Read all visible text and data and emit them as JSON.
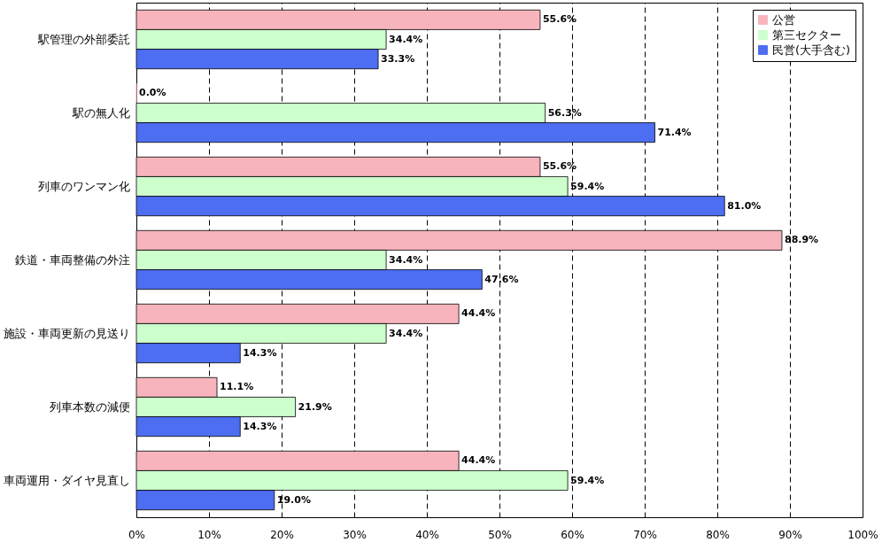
{
  "chart_data": {
    "type": "bar",
    "orientation": "horizontal",
    "categories": [
      "駅管理の外部委託",
      "駅の無人化",
      "列車のワンマン化",
      "鉄道・車両整備の外注",
      "施設・車両更新の見送り",
      "列車本数の減便",
      "車両運用・ダイヤ見直し"
    ],
    "series": [
      {
        "name": "公営",
        "color": "#f7b4bc",
        "values": [
          55.6,
          0.0,
          55.6,
          88.9,
          44.4,
          11.1,
          44.4
        ],
        "value_labels": [
          "55.6%",
          "0.0%",
          "55.6%",
          "88.9%",
          "44.4%",
          "11.1%",
          "44.4%"
        ]
      },
      {
        "name": "第三セクター",
        "color": "#ccffcc",
        "values": [
          34.4,
          56.3,
          59.4,
          34.4,
          34.4,
          21.9,
          59.4
        ],
        "value_labels": [
          "34.4%",
          "56.3%",
          "59.4%",
          "34.4%",
          "34.4%",
          "21.9%",
          "59.4%"
        ]
      },
      {
        "name": "民営(大手含む)",
        "color": "#4d6ef0",
        "values": [
          33.3,
          71.4,
          81.0,
          47.6,
          14.3,
          14.3,
          19.0
        ],
        "value_labels": [
          "33.3%",
          "71.4%",
          "81.0%",
          "47.6%",
          "14.3%",
          "14.3%",
          "19.0%"
        ]
      }
    ],
    "xlim": [
      0,
      100
    ],
    "xticks": [
      {
        "value": 0,
        "label": "0%"
      },
      {
        "value": 10,
        "label": "10%"
      },
      {
        "value": 20,
        "label": "20%"
      },
      {
        "value": 30,
        "label": "30%"
      },
      {
        "value": 40,
        "label": "40%"
      },
      {
        "value": 50,
        "label": "50%"
      },
      {
        "value": 60,
        "label": "60%"
      },
      {
        "value": 70,
        "label": "70%"
      },
      {
        "value": 80,
        "label": "80%"
      },
      {
        "value": 90,
        "label": "90%"
      },
      {
        "value": 100,
        "label": "100%"
      }
    ],
    "grid": "x",
    "legend": "top right"
  }
}
